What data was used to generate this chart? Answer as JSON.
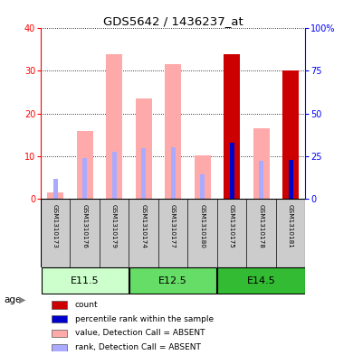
{
  "title": "GDS5642 / 1436237_at",
  "samples": [
    "GSM1310173",
    "GSM1310176",
    "GSM1310179",
    "GSM1310174",
    "GSM1310177",
    "GSM1310180",
    "GSM1310175",
    "GSM1310178",
    "GSM1310181"
  ],
  "groups": [
    {
      "label": "E11.5",
      "start": 0,
      "end": 2,
      "color": "#ccffcc"
    },
    {
      "label": "E12.5",
      "start": 3,
      "end": 5,
      "color": "#66dd66"
    },
    {
      "label": "E14.5",
      "start": 6,
      "end": 8,
      "color": "#33bb33"
    }
  ],
  "value_absent": [
    1.5,
    15.8,
    34.0,
    23.5,
    31.5,
    10.2,
    0,
    16.6,
    0
  ],
  "rank_absent": [
    4.5,
    9.5,
    11.0,
    11.8,
    12.0,
    5.7,
    0,
    8.8,
    0
  ],
  "count_val": [
    0,
    0,
    0,
    0,
    0,
    0,
    34.0,
    0,
    30.2
  ],
  "rank_present": [
    0,
    0,
    0,
    0,
    0,
    0,
    13.2,
    0,
    9.0
  ],
  "ylim_left": [
    0,
    40
  ],
  "ylim_right": [
    0,
    100
  ],
  "yticks_left": [
    0,
    10,
    20,
    30,
    40
  ],
  "yticks_right": [
    0,
    25,
    50,
    75,
    100
  ],
  "color_count": "#cc0000",
  "color_rank_present": "#0000cc",
  "color_value_absent": "#ffaaaa",
  "color_rank_absent": "#aaaaff",
  "legend_items": [
    {
      "color": "#cc0000",
      "label": "count"
    },
    {
      "color": "#0000cc",
      "label": "percentile rank within the sample"
    },
    {
      "color": "#ffaaaa",
      "label": "value, Detection Call = ABSENT"
    },
    {
      "color": "#aaaaff",
      "label": "rank, Detection Call = ABSENT"
    }
  ]
}
